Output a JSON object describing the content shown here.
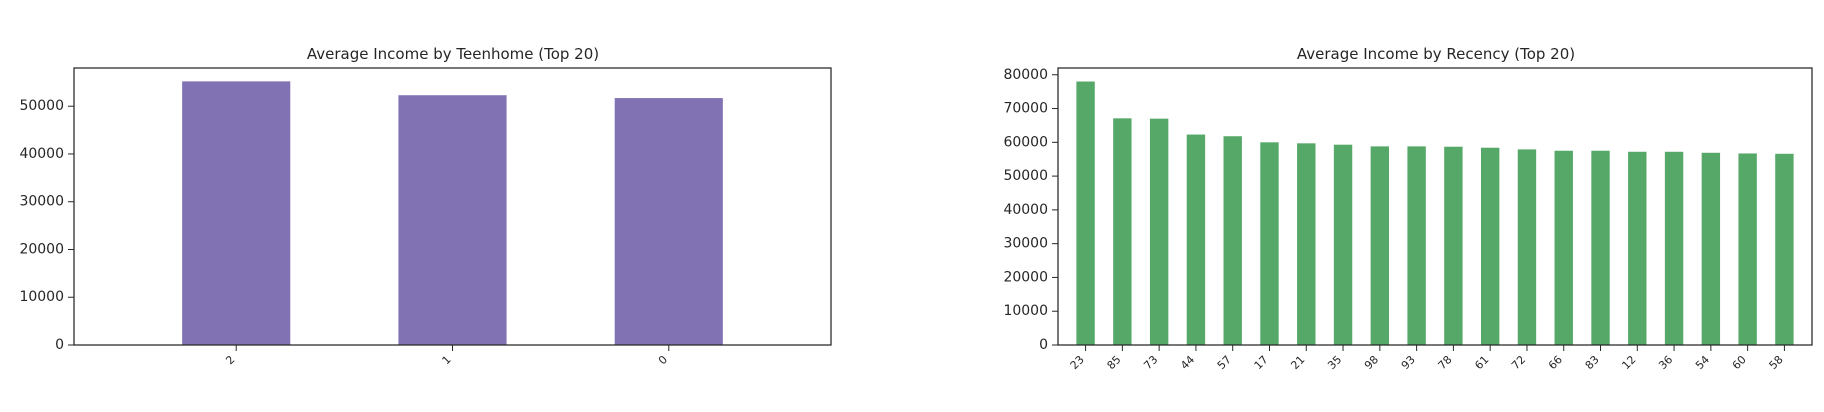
{
  "chart_data": [
    {
      "type": "bar",
      "title": "Average Income by Teenhome (Top 20)",
      "xlabel": "",
      "ylabel": "",
      "categories": [
        "2",
        "1",
        "0"
      ],
      "values": [
        55200,
        52300,
        51700
      ],
      "ylim": [
        0,
        58000
      ],
      "yticks": [
        0,
        10000,
        20000,
        30000,
        40000,
        50000
      ],
      "color": "#8172b3",
      "grid": false
    },
    {
      "type": "bar",
      "title": "Average Income by Recency (Top 20)",
      "xlabel": "",
      "ylabel": "",
      "categories": [
        "23",
        "85",
        "73",
        "44",
        "57",
        "17",
        "21",
        "35",
        "98",
        "93",
        "78",
        "61",
        "72",
        "66",
        "83",
        "12",
        "36",
        "54",
        "60",
        "58"
      ],
      "values": [
        78000,
        67100,
        67000,
        62300,
        61800,
        60000,
        59700,
        59300,
        58800,
        58800,
        58700,
        58400,
        57900,
        57500,
        57500,
        57200,
        57200,
        56900,
        56700,
        56600
      ],
      "ylim": [
        0,
        82000
      ],
      "yticks": [
        0,
        10000,
        20000,
        30000,
        40000,
        50000,
        60000,
        70000,
        80000
      ],
      "color": "#55a868",
      "grid": false
    }
  ]
}
